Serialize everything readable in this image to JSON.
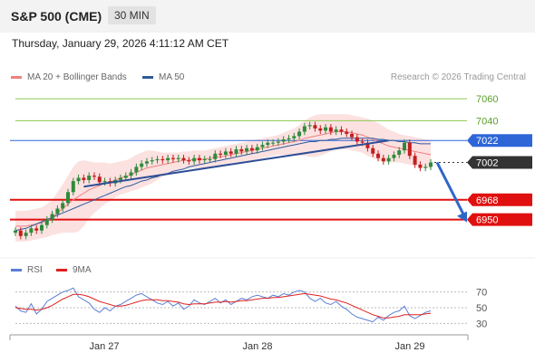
{
  "header": {
    "symbol": "S&P 500 (CME)",
    "timeframe": "30 MIN"
  },
  "datetime": "Thursday, January 29, 2026 4:11:12 AM CET",
  "credit": "Research © 2026 Trading Central",
  "legend": [
    {
      "label": "MA 20 + Bollinger Bands",
      "color": "#f08080"
    },
    {
      "label": "MA 50",
      "color": "#2e5a9c"
    }
  ],
  "rsi_legend": [
    {
      "label": "RSI",
      "color": "#5b7fd6"
    },
    {
      "label": "9MA",
      "color": "#e02020"
    }
  ],
  "colors": {
    "up": "#2e8b3a",
    "down": "#c41e1e",
    "resistance": "#8cc850",
    "support": "#e01010",
    "pivot": "#2e66d8",
    "current": "#333333"
  },
  "chart_data": [
    {
      "type": "candlestick",
      "x_ticks": [
        "Jan 27",
        "Jan 28",
        "Jan 29"
      ],
      "ylim": [
        6920,
        7070
      ],
      "levels": [
        {
          "label": "7060",
          "value": 7060,
          "kind": "resistance"
        },
        {
          "label": "7040",
          "value": 7040,
          "kind": "resistance"
        },
        {
          "label": "7022",
          "value": 7022,
          "kind": "pivot"
        },
        {
          "label": "7002",
          "value": 7002,
          "kind": "current"
        },
        {
          "label": "6968",
          "value": 6968,
          "kind": "support"
        },
        {
          "label": "6950",
          "value": 6950,
          "kind": "support"
        }
      ],
      "close": [
        6940,
        6935,
        6938,
        6942,
        6940,
        6945,
        6950,
        6955,
        6960,
        6965,
        6975,
        6985,
        6988,
        6986,
        6990,
        6989,
        6984,
        6985,
        6983,
        6986,
        6988,
        6990,
        6993,
        6998,
        7001,
        7003,
        7004,
        7005,
        7004,
        7006,
        7005,
        7006,
        7004,
        7003,
        7006,
        7004,
        7005,
        7005,
        7010,
        7009,
        7012,
        7010,
        7014,
        7012,
        7015,
        7013,
        7016,
        7018,
        7020,
        7020,
        7021,
        7023,
        7024,
        7026,
        7030,
        7035,
        7036,
        7033,
        7031,
        7034,
        7030,
        7032,
        7030,
        7028,
        7025,
        7021,
        7020,
        7015,
        7010,
        7006,
        7003,
        7006,
        7009,
        7013,
        7020,
        7008,
        7000,
        6997,
        6998,
        7002
      ],
      "ma20": [
        6944,
        6944,
        6944,
        6945,
        6946,
        6947,
        6949,
        6952,
        6956,
        6960,
        6964,
        6968,
        6971,
        6974,
        6977,
        6979,
        6981,
        6983,
        6984,
        6986,
        6988,
        6989,
        6991,
        6993,
        6995,
        6997,
        6998,
        6999,
        7000,
        7001,
        7002,
        7003,
        7004,
        7004,
        7005,
        7005,
        7005,
        7006,
        7007,
        7007,
        7008,
        7009,
        7010,
        7011,
        7012,
        7013,
        7014,
        7015,
        7016,
        7017,
        7018,
        7019,
        7020,
        7021,
        7022,
        7024,
        7025,
        7026,
        7027,
        7028,
        7029,
        7030,
        7030,
        7030,
        7029,
        7028,
        7027,
        7025,
        7023,
        7021,
        7019,
        7017,
        7016,
        7015,
        7014,
        7013,
        7012,
        7011,
        7010,
        7009
      ],
      "bb_upper": [
        6958,
        6958,
        6958,
        6959,
        6960,
        6961,
        6964,
        6968,
        6975,
        6982,
        6990,
        6998,
        7003,
        7004,
        7003,
        7002,
        7002,
        7002,
        7001,
        7002,
        7003,
        7004,
        7006,
        7009,
        7011,
        7013,
        7013,
        7012,
        7011,
        7011,
        7011,
        7011,
        7012,
        7012,
        7013,
        7013,
        7013,
        7014,
        7015,
        7016,
        7017,
        7018,
        7019,
        7020,
        7021,
        7022,
        7023,
        7024,
        7025,
        7026,
        7027,
        7029,
        7031,
        7033,
        7036,
        7040,
        7043,
        7045,
        7046,
        7046,
        7046,
        7046,
        7046,
        7046,
        7045,
        7044,
        7043,
        7042,
        7040,
        7038,
        7035,
        7032,
        7030,
        7028,
        7027,
        7026,
        7025,
        7024,
        7023,
        7022
      ],
      "bb_lower": [
        6930,
        6930,
        6930,
        6931,
        6932,
        6933,
        6934,
        6936,
        6937,
        6938,
        6938,
        6938,
        6939,
        6944,
        6951,
        6956,
        6960,
        6964,
        6967,
        6970,
        6973,
        6974,
        6976,
        6977,
        6979,
        6981,
        6983,
        6986,
        6989,
        6991,
        6993,
        6995,
        6996,
        6996,
        6997,
        6997,
        6997,
        6998,
        6999,
        6998,
        6999,
        7000,
        7001,
        7002,
        7003,
        7004,
        7005,
        7006,
        7007,
        7008,
        7009,
        7009,
        7009,
        7009,
        7008,
        7008,
        7007,
        7007,
        7008,
        7010,
        7012,
        7014,
        7014,
        7014,
        7013,
        7012,
        7011,
        7008,
        7006,
        7004,
        7003,
        7002,
        7002,
        7002,
        7001,
        7000,
        6999,
        6998,
        6997,
        6996
      ],
      "ma50": [
        6940,
        6941,
        6942,
        6944,
        6946,
        6948,
        6950,
        6952,
        6954,
        6956,
        6958,
        6960,
        6962,
        6964,
        6966,
        6968,
        6970,
        6972,
        6974,
        6976,
        6978,
        6980,
        6981,
        6983,
        6985,
        6986,
        6988,
        6989,
        6991,
        6992,
        6994,
        6995,
        6996,
        6998,
        6999,
        7000,
        7001,
        7002,
        7003,
        7004,
        7005,
        7006,
        7007,
        7008,
        7009,
        7010,
        7011,
        7012,
        7013,
        7014,
        7015,
        7016,
        7017,
        7018,
        7019,
        7020,
        7021,
        7021,
        7022,
        7022,
        7023,
        7023,
        7024,
        7024,
        7024,
        7024,
        7024,
        7024,
        7024,
        7023,
        7023,
        7022,
        7022,
        7021,
        7021,
        7020,
        7020,
        7019,
        7019,
        7019
      ],
      "trendline": [
        [
          13,
          6980
        ],
        [
          71,
          7022
        ]
      ],
      "forecast_arrow": [
        [
          79,
          7002
        ],
        [
          89,
          6950
        ]
      ]
    },
    {
      "type": "line",
      "name": "RSI",
      "yticks": [
        70,
        50,
        30
      ],
      "ylim": [
        20,
        80
      ],
      "rsi": [
        52,
        46,
        44,
        55,
        42,
        48,
        58,
        62,
        66,
        70,
        72,
        75,
        64,
        60,
        56,
        48,
        44,
        50,
        46,
        52,
        54,
        58,
        62,
        66,
        68,
        64,
        60,
        56,
        54,
        58,
        52,
        56,
        48,
        52,
        60,
        56,
        54,
        58,
        62,
        56,
        60,
        54,
        58,
        62,
        60,
        64,
        66,
        64,
        62,
        66,
        64,
        68,
        66,
        70,
        72,
        70,
        62,
        58,
        62,
        56,
        54,
        58,
        52,
        48,
        42,
        38,
        36,
        34,
        32,
        38,
        34,
        40,
        44,
        46,
        52,
        40,
        36,
        40,
        44,
        46
      ],
      "rsi_ma": [
        50,
        49,
        48,
        48,
        47,
        48,
        50,
        53,
        57,
        61,
        64,
        67,
        67,
        66,
        64,
        61,
        58,
        56,
        54,
        52,
        52,
        53,
        55,
        57,
        59,
        60,
        60,
        60,
        59,
        59,
        58,
        57,
        55,
        54,
        55,
        55,
        55,
        56,
        57,
        57,
        58,
        57,
        58,
        59,
        59,
        60,
        61,
        62,
        62,
        63,
        63,
        64,
        65,
        66,
        67,
        68,
        67,
        66,
        65,
        63,
        61,
        60,
        58,
        56,
        53,
        50,
        47,
        44,
        41,
        39,
        37,
        37,
        38,
        39,
        41,
        41,
        41,
        41,
        42,
        43
      ]
    }
  ]
}
